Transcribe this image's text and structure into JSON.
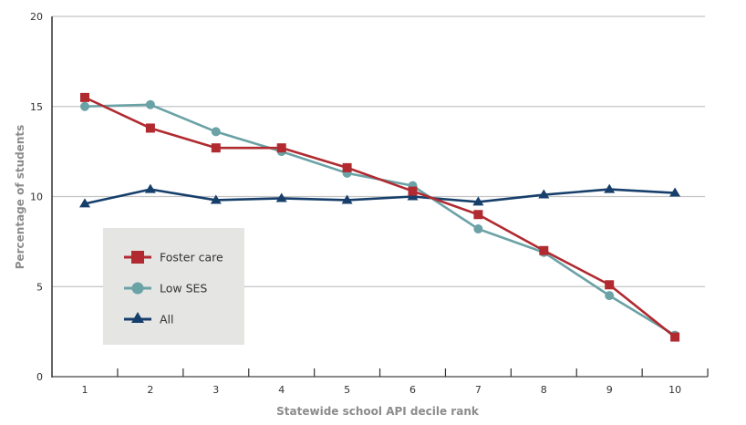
{
  "chart_data": {
    "type": "line",
    "title": "",
    "xlabel": "Statewide school API decile rank",
    "ylabel": "Percentage of students",
    "categories": [
      "1",
      "2",
      "3",
      "4",
      "5",
      "6",
      "7",
      "8",
      "9",
      "10"
    ],
    "ylim": [
      0,
      20
    ],
    "yticks": [
      0,
      5,
      10,
      15,
      20
    ],
    "ytick_labels": [
      "0",
      "5",
      "10",
      "15",
      "20"
    ],
    "grid": "horizontal",
    "legend_position": "lower-left",
    "series": [
      {
        "name": "Foster care",
        "marker": "square",
        "color": "#b02a30",
        "values": [
          15.5,
          13.8,
          12.7,
          12.7,
          11.6,
          10.3,
          9.0,
          7.0,
          5.1,
          2.2
        ]
      },
      {
        "name": "Low SES",
        "marker": "circle",
        "color": "#6aa2a6",
        "values": [
          15.0,
          15.1,
          13.6,
          12.5,
          11.3,
          10.6,
          8.2,
          6.9,
          4.5,
          2.3
        ]
      },
      {
        "name": "All",
        "marker": "triangle",
        "color": "#173f6b",
        "values": [
          9.6,
          10.4,
          9.8,
          9.9,
          9.8,
          10.0,
          9.7,
          10.1,
          10.4,
          10.2
        ]
      }
    ]
  }
}
